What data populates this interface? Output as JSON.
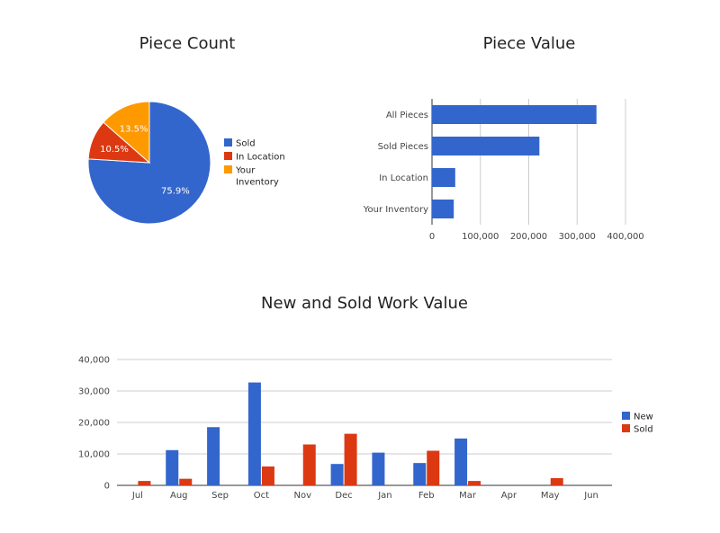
{
  "chart_data": [
    {
      "type": "pie",
      "title": "Piece Count",
      "slices": [
        {
          "label": "Sold",
          "value": 75.9,
          "label_text": "75.9%",
          "color": "#3366cc"
        },
        {
          "label": "In Location",
          "value": 10.5,
          "label_text": "10.5%",
          "color": "#dc3912"
        },
        {
          "label": "Your Inventory",
          "value": 13.5,
          "label_text": "13.5%",
          "color": "#ff9900"
        }
      ],
      "legend_position": "right"
    },
    {
      "type": "bar",
      "orientation": "horizontal",
      "title": "Piece Value",
      "categories": [
        "All Pieces",
        "Sold Pieces",
        "In Location",
        "Your Inventory"
      ],
      "values": [
        340000,
        222000,
        48000,
        45000
      ],
      "color": "#3366cc",
      "xlim": [
        0,
        400000
      ],
      "xticks": [
        0,
        100000,
        200000,
        300000,
        400000
      ],
      "xtick_labels": [
        "0",
        "100,000",
        "200,000",
        "300,000",
        "400,000"
      ],
      "grid": true
    },
    {
      "type": "bar",
      "title": "New and Sold Work Value",
      "categories": [
        "Jul",
        "Aug",
        "Sep",
        "Oct",
        "Nov",
        "Dec",
        "Jan",
        "Feb",
        "Mar",
        "Apr",
        "May",
        "Jun"
      ],
      "series": [
        {
          "name": "New",
          "color": "#3366cc",
          "values": [
            0,
            11200,
            18500,
            32700,
            0,
            6800,
            10400,
            7100,
            14900,
            0,
            0,
            0
          ]
        },
        {
          "name": "Sold",
          "color": "#dc3912",
          "values": [
            1400,
            2100,
            0,
            6000,
            13000,
            16400,
            0,
            11000,
            1400,
            0,
            2300,
            0
          ]
        }
      ],
      "ylim": [
        0,
        40000
      ],
      "yticks": [
        0,
        10000,
        20000,
        30000,
        40000
      ],
      "ytick_labels": [
        "0",
        "10,000",
        "20,000",
        "30,000",
        "40,000"
      ],
      "grid": true,
      "legend_position": "right"
    }
  ]
}
